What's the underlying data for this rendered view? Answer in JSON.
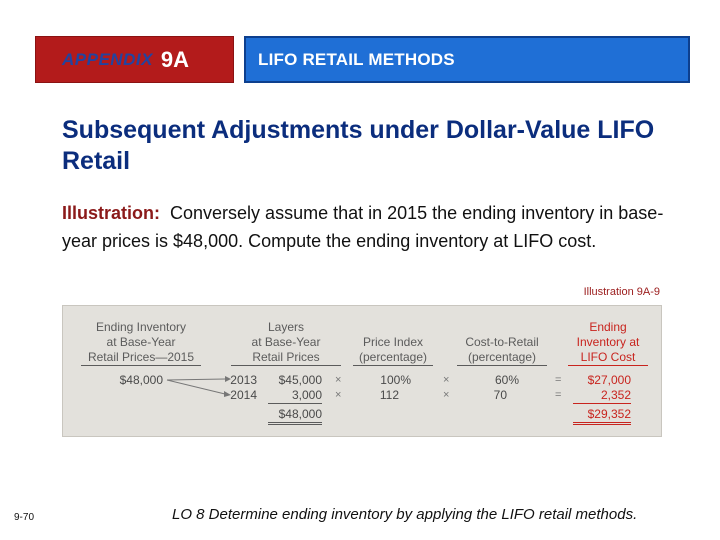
{
  "header": {
    "appendix_word": "APPENDIX",
    "appendix_number": "9A",
    "title": "LIFO RETAIL METHODS"
  },
  "slide": {
    "heading": "Subsequent Adjustments under Dollar-Value LIFO Retail",
    "illustration_lead": "Illustration:",
    "illustration_text": "Conversely assume that in 2015 the ending inventory in base-year prices is $48,000.  Compute the ending inventory at LIFO cost.",
    "illustration_ref": "Illustration 9A-9"
  },
  "table": {
    "headers": {
      "ending_inventory": [
        "Ending Inventory",
        "at Base-Year",
        "Retail Prices—2015"
      ],
      "layers": [
        "Layers",
        "at Base-Year",
        "Retail Prices"
      ],
      "price_index": [
        "Price Index",
        "(percentage)"
      ],
      "cost_to_retail": [
        "Cost-to-Retail",
        "(percentage)"
      ],
      "ending_lifo": [
        "Ending",
        "Inventory at",
        "LIFO Cost"
      ]
    },
    "ending_inventory_value": "$48,000",
    "rows": [
      {
        "year": "2013",
        "layer": "$45,000",
        "index": "100%",
        "ratio": "60%",
        "lifo": "$27,000"
      },
      {
        "year": "2014",
        "layer": "3,000",
        "index": "112",
        "ratio": "70",
        "lifo": "2,352"
      }
    ],
    "layer_total": "$48,000",
    "lifo_total": "$29,352",
    "times_symbol": "×",
    "equals_symbol": "="
  },
  "footer": {
    "page_number": "9-70",
    "learning_objective": "LO 8  Determine ending inventory by applying the LIFO retail methods."
  },
  "colors": {
    "header_left_bg": "#b31b1b",
    "header_right_bg": "#1f6fd6",
    "heading_text": "#0b2d7d",
    "illustration_lead": "#8b1a1a",
    "table_red": "#c8241e"
  }
}
